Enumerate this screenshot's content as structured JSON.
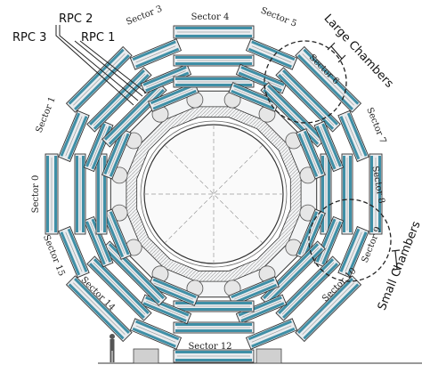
{
  "rpc_labels": {
    "rpc2": "RPC 2",
    "rpc3": "RPC 3",
    "rpc1": "RPC 1"
  },
  "sectors": [
    "Sector 0",
    "Sector 1",
    "Sector 3",
    "Sector 4",
    "Sector 5",
    "Sector 6",
    "Sector 7",
    "Sector 8",
    "Sector 9",
    "Sector 10",
    "Sector 12",
    "Sector 14",
    "Sector 15"
  ],
  "groups": {
    "large": "Large Chambers",
    "small": "Small Chambers"
  },
  "colors": {
    "rpc": "#3f8fa6",
    "chamber_fill": "#e9ecef",
    "line": "#333333",
    "dashed": "#222222"
  }
}
